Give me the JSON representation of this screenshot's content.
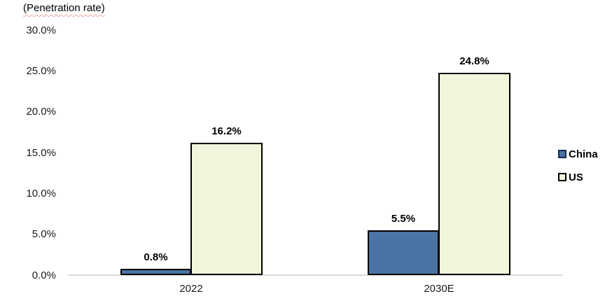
{
  "chart_data": {
    "type": "bar",
    "title": "(Penetration rate)",
    "categories": [
      "2022",
      "2030E"
    ],
    "series": [
      {
        "name": "China",
        "color": "#4A74A4",
        "values": [
          0.8,
          5.5
        ]
      },
      {
        "name": "US",
        "color": "#F0F5DC",
        "values": [
          16.2,
          24.8
        ]
      }
    ],
    "value_labels": {
      "china_2022": "0.8%",
      "us_2022": "16.2%",
      "china_2030": "5.5%",
      "us_2030": "24.8%"
    },
    "yticks": [
      "30.0%",
      "25.0%",
      "20.0%",
      "15.0%",
      "10.0%",
      "5.0%",
      "0.0%"
    ],
    "ylim": [
      0,
      30
    ],
    "grid": false,
    "legend_position": "right",
    "bar_border_color": "#000000",
    "axis_line_color": "#DCDCDC"
  }
}
